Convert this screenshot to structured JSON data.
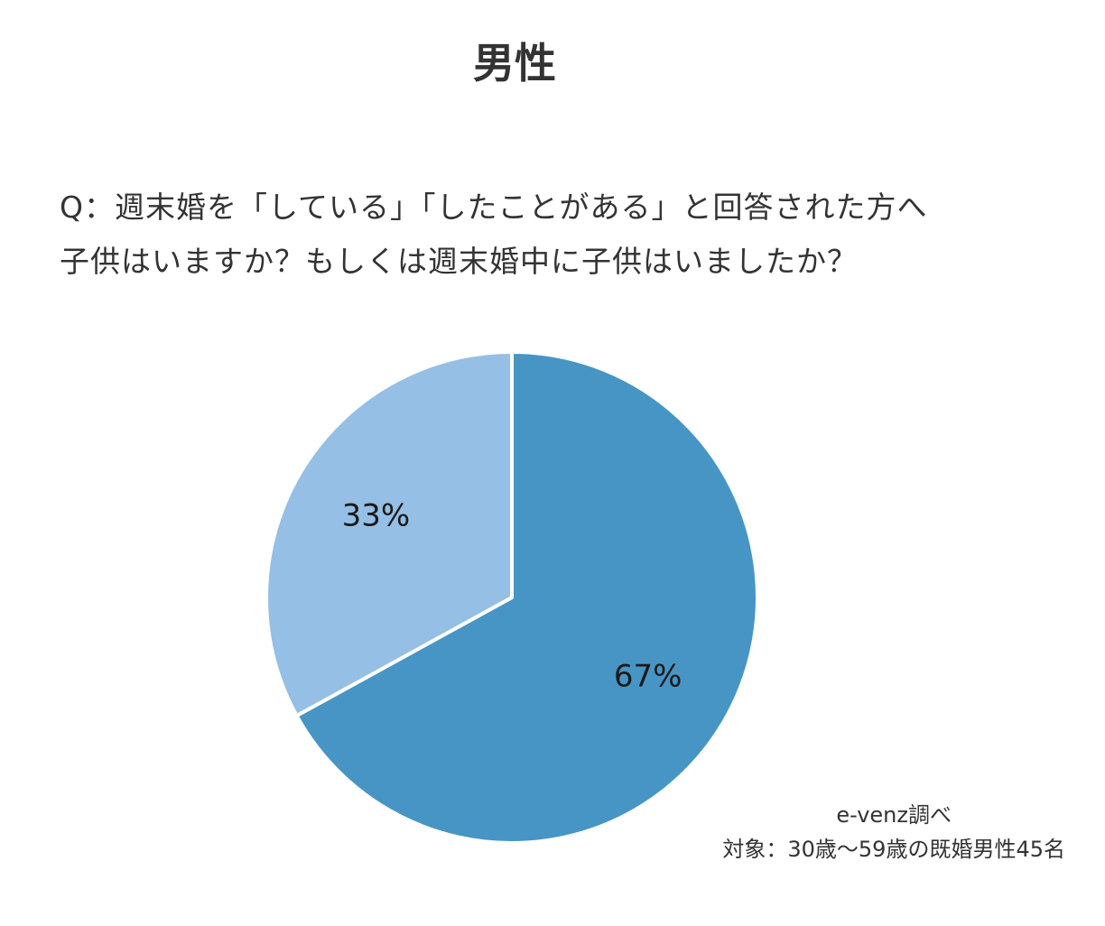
{
  "title": "男性",
  "question": {
    "line1": "Q：週末婚を「している」「したことがある」と回答された方へ",
    "line2": "子供はいますか？もしくは週末婚中に子供はいましたか？"
  },
  "chart_data": {
    "type": "pie",
    "start_angle": "12 o'clock",
    "direction": "clockwise",
    "slices": [
      {
        "value": 67,
        "label": "67%",
        "color": "#4795c5"
      },
      {
        "value": 33,
        "label": "33%",
        "color": "#95bfe5"
      }
    ],
    "separator_color": "#ffffff"
  },
  "footnote": {
    "source": "e-venz調べ",
    "target": "対象：30歳～59歳の既婚男性45名"
  }
}
